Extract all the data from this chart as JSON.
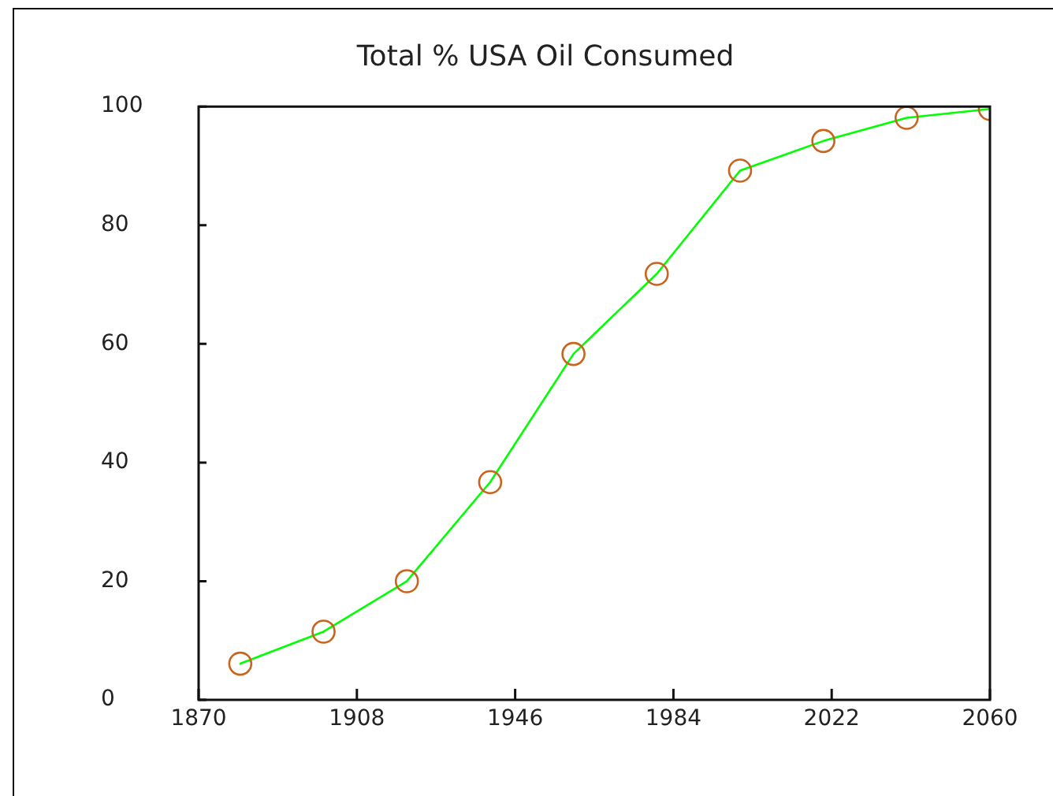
{
  "chart_data": {
    "type": "line",
    "title": "Total % USA Oil Consumed",
    "x": [
      1880,
      1900,
      1920,
      1940,
      1960,
      1980,
      2000,
      2020,
      2040,
      2060
    ],
    "series": [
      {
        "color": "#00ff00",
        "colors": [
          "#c8641e",
          "#c8641e",
          "#c8641e",
          "#c8641e",
          "#c8641e",
          "#c8641e",
          "#c8641e",
          "#c8641e",
          "#c8641e",
          "#c8641e"
        ],
        "values": [
          6.1,
          11.5,
          20,
          36.7,
          58.3,
          71.8,
          89.2,
          94.2,
          98.1,
          99.6
        ]
      }
    ],
    "xlim": [
      1870,
      2060
    ],
    "xticks": [
      1870,
      1908,
      1946,
      1984,
      2022,
      2060
    ],
    "ylim": [
      0,
      100
    ],
    "yticks": [
      0,
      20,
      40,
      60,
      80,
      100
    ],
    "grid": false,
    "legend": false,
    "marker": "circle",
    "line_style": "solid"
  }
}
